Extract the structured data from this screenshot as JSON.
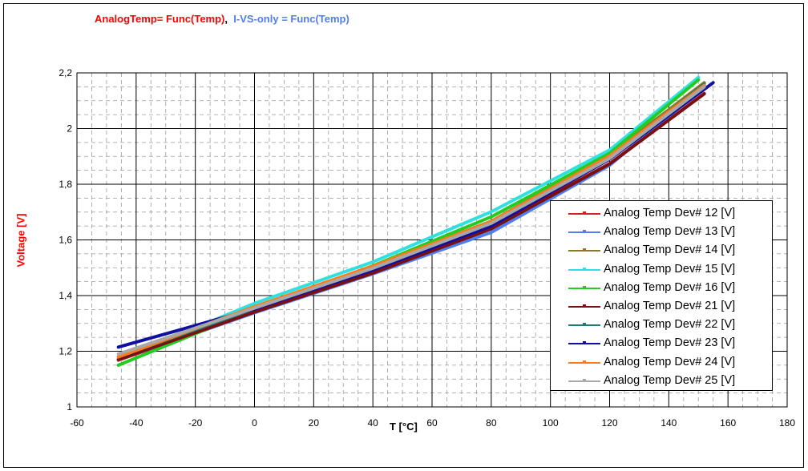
{
  "title": {
    "part1": "AnalogTemp= Func(Temp)",
    "separator": ",",
    "part2": "I-VS-only = Func(Temp)",
    "color1": "#ff0000",
    "color2": "#4f7ef0"
  },
  "chart_data": {
    "type": "line",
    "xlabel": "T [°C]",
    "ylabel": "Voltage [V]",
    "xlim": [
      -60,
      180
    ],
    "ylim": [
      1,
      2.2
    ],
    "xticks": [
      -60,
      -40,
      -20,
      0,
      20,
      40,
      60,
      80,
      100,
      120,
      140,
      160,
      180
    ],
    "yticks": [
      1,
      1.2,
      1.4,
      1.6,
      1.8,
      2,
      2.2
    ],
    "ytick_labels": [
      "1",
      "1,2",
      "1,4",
      "1,6",
      "1,8",
      "2",
      "2,2"
    ],
    "grid": true,
    "legend_position": "right",
    "series": [
      {
        "name": "Analog Temp Dev# 12 [V]",
        "color": "#d42020",
        "x": [
          -46,
          0,
          40,
          80,
          120,
          152
        ],
        "y": [
          1.168,
          1.339,
          1.485,
          1.644,
          1.874,
          2.126
        ]
      },
      {
        "name": "Analog Temp Dev# 13 [V]",
        "color": "#4f7ef0",
        "x": [
          -46,
          0,
          40,
          80,
          120,
          152
        ],
        "y": [
          1.17,
          1.338,
          1.478,
          1.627,
          1.868,
          2.15
        ]
      },
      {
        "name": "Analog Temp Dev# 14 [V]",
        "color": "#8c7a2a",
        "x": [
          -46,
          0,
          40,
          80,
          120,
          152
        ],
        "y": [
          1.18,
          1.352,
          1.505,
          1.667,
          1.906,
          2.165
        ]
      },
      {
        "name": "Analog Temp Dev# 15 [V]",
        "color": "#30e0e0",
        "x": [
          -46,
          0,
          40,
          80,
          120,
          150
        ],
        "y": [
          1.17,
          1.372,
          1.521,
          1.701,
          1.923,
          2.184
        ]
      },
      {
        "name": "Analog Temp Dev# 16 [V]",
        "color": "#22cc22",
        "x": [
          -46,
          0,
          40,
          80,
          120,
          150
        ],
        "y": [
          1.15,
          1.35,
          1.507,
          1.683,
          1.911,
          2.175
        ]
      },
      {
        "name": "Analog Temp Dev# 21 [V]",
        "color": "#7a1010",
        "x": [
          -46,
          0,
          40,
          80,
          120,
          152
        ],
        "y": [
          1.17,
          1.341,
          1.481,
          1.64,
          1.873,
          2.125
        ]
      },
      {
        "name": "Analog Temp Dev# 22 [V]",
        "color": "#1f7a7a",
        "x": [
          -46,
          0,
          40,
          80,
          120,
          152
        ],
        "y": [
          1.18,
          1.353,
          1.5,
          1.66,
          1.895,
          2.16
        ]
      },
      {
        "name": "Analog Temp Dev# 23 [V]",
        "color": "#1010a0",
        "x": [
          -46,
          0,
          40,
          80,
          120,
          155
        ],
        "y": [
          1.215,
          1.352,
          1.492,
          1.65,
          1.89,
          2.165
        ]
      },
      {
        "name": "Analog Temp Dev# 24 [V]",
        "color": "#ff7a1a",
        "x": [
          -46,
          0,
          40,
          80,
          120,
          152
        ],
        "y": [
          1.18,
          1.36,
          1.506,
          1.666,
          1.902,
          2.155
        ]
      },
      {
        "name": "Analog Temp Dev# 25 [V]",
        "color": "#a8a8a8",
        "x": [
          -46,
          0,
          40,
          80,
          120,
          152
        ],
        "y": [
          1.19,
          1.355,
          1.498,
          1.66,
          1.893,
          2.15
        ]
      }
    ]
  }
}
